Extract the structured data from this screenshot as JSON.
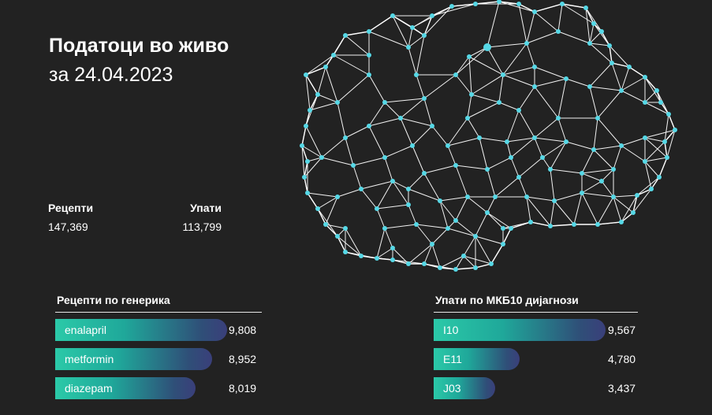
{
  "header": {
    "title": "Податоци во живо",
    "subtitle": "за 24.04.2023"
  },
  "stats": {
    "prescriptions_label": "Рецепти",
    "referrals_label": "Упати",
    "prescriptions_value": "147,369",
    "referrals_value": "113,799"
  },
  "generics": {
    "title": "Рецепти по генерика",
    "items": [
      {
        "label": "enalapril",
        "value": "9,808",
        "fraction": 1.0
      },
      {
        "label": "metformin",
        "value": "8,952",
        "fraction": 0.913
      },
      {
        "label": "diazepam",
        "value": "8,019",
        "fraction": 0.818
      }
    ]
  },
  "diagnoses": {
    "title": "Упати по МКБ10 дијагнози",
    "items": [
      {
        "label": "I10",
        "value": "9,567",
        "fraction": 1.0
      },
      {
        "label": "E11",
        "value": "4,780",
        "fraction": 0.5
      },
      {
        "label": "J03",
        "value": "3,437",
        "fraction": 0.36
      }
    ]
  },
  "colors": {
    "background": "#222222",
    "node": "#56d8e6",
    "bar_start": "#2bc9a8",
    "bar_end": "#3a3f7a"
  },
  "map": {
    "icon": "network-map-of-macedonia"
  }
}
